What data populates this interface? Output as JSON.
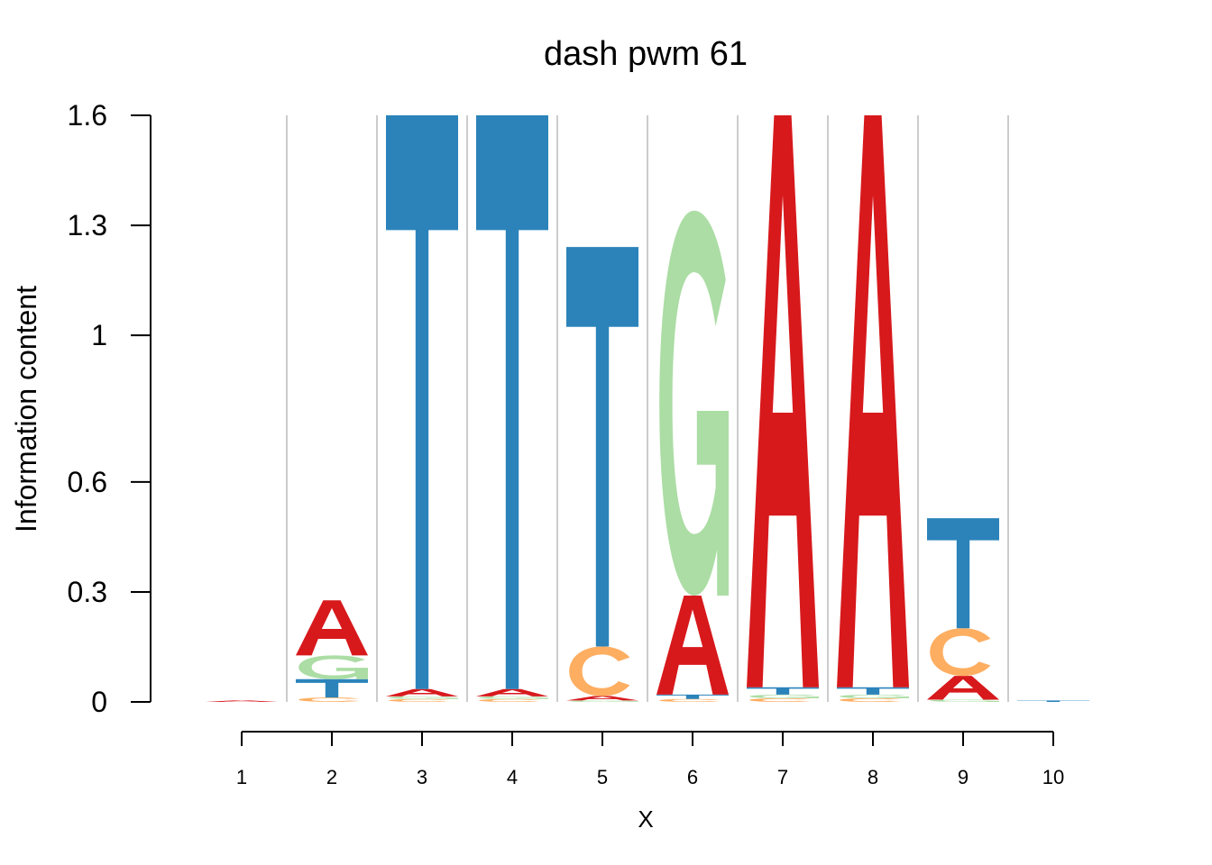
{
  "chart_data": {
    "type": "sequence-logo",
    "title": "dash pwm 61",
    "xlabel": "X",
    "ylabel": "Information content",
    "ylim": [
      0,
      1.6
    ],
    "yticks": [
      0,
      0.3,
      0.6,
      1,
      1.3,
      1.6
    ],
    "ytick_labels": [
      "0",
      "0.3",
      "0.6",
      "1",
      "1.3",
      "1.6"
    ],
    "x": [
      1,
      2,
      3,
      4,
      5,
      6,
      7,
      8,
      9,
      10
    ],
    "x_labels": [
      "1",
      "2",
      "3",
      "4",
      "5",
      "6",
      "7",
      "8",
      "9",
      "10"
    ],
    "colors": {
      "A": "#d7191c",
      "C": "#fdae61",
      "G": "#abdda4",
      "T": "#2b83ba"
    },
    "positions": [
      {
        "pos": 1,
        "stack": [
          {
            "letter": "A",
            "height": 0.004
          }
        ]
      },
      {
        "pos": 2,
        "stack": [
          {
            "letter": "C",
            "height": 0.012
          },
          {
            "letter": "T",
            "height": 0.05
          },
          {
            "letter": "G",
            "height": 0.065
          },
          {
            "letter": "A",
            "height": 0.15
          }
        ]
      },
      {
        "pos": 3,
        "stack": [
          {
            "letter": "C",
            "height": 0.008
          },
          {
            "letter": "G",
            "height": 0.007
          },
          {
            "letter": "A",
            "height": 0.02
          },
          {
            "letter": "T",
            "height": 1.565
          }
        ]
      },
      {
        "pos": 4,
        "stack": [
          {
            "letter": "C",
            "height": 0.008
          },
          {
            "letter": "G",
            "height": 0.007
          },
          {
            "letter": "A",
            "height": 0.02
          },
          {
            "letter": "T",
            "height": 1.565
          }
        ]
      },
      {
        "pos": 5,
        "stack": [
          {
            "letter": "G",
            "height": 0.004
          },
          {
            "letter": "A",
            "height": 0.012
          },
          {
            "letter": "C",
            "height": 0.135
          },
          {
            "letter": "T",
            "height": 1.09
          }
        ]
      },
      {
        "pos": 6,
        "stack": [
          {
            "letter": "C",
            "height": 0.008
          },
          {
            "letter": "T",
            "height": 0.012
          },
          {
            "letter": "A",
            "height": 0.27
          },
          {
            "letter": "G",
            "height": 1.05
          }
        ]
      },
      {
        "pos": 7,
        "stack": [
          {
            "letter": "C",
            "height": 0.01
          },
          {
            "letter": "G",
            "height": 0.01
          },
          {
            "letter": "T",
            "height": 0.02
          },
          {
            "letter": "A",
            "height": 1.56
          }
        ]
      },
      {
        "pos": 8,
        "stack": [
          {
            "letter": "C",
            "height": 0.01
          },
          {
            "letter": "G",
            "height": 0.01
          },
          {
            "letter": "T",
            "height": 0.02
          },
          {
            "letter": "A",
            "height": 1.56
          }
        ]
      },
      {
        "pos": 9,
        "stack": [
          {
            "letter": "G",
            "height": 0.006
          },
          {
            "letter": "A",
            "height": 0.065
          },
          {
            "letter": "C",
            "height": 0.13
          },
          {
            "letter": "T",
            "height": 0.3
          }
        ]
      },
      {
        "pos": 10,
        "stack": [
          {
            "letter": "T",
            "height": 0.004
          }
        ]
      }
    ]
  }
}
